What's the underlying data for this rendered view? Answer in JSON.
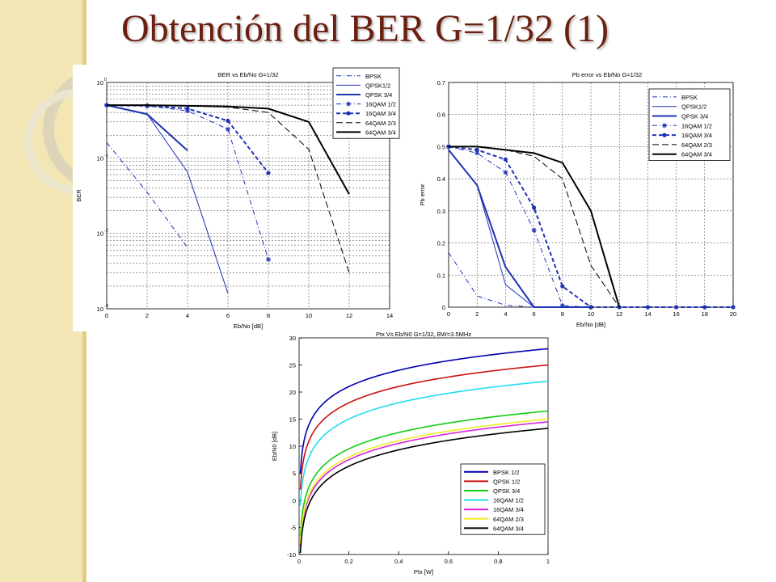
{
  "slide": {
    "title": "Obtención del BER G=1/32 (1)"
  },
  "chart_data": [
    {
      "type": "line",
      "title": "BER vs Eb/No G=1/32",
      "xlabel": "Eb/No [dB]",
      "ylabel": "BER",
      "xlim": [
        0,
        14
      ],
      "ylim": [
        0.001,
        1
      ],
      "yscale": "log",
      "xticks": [
        "0",
        "2",
        "4",
        "6",
        "8",
        "10",
        "12",
        "14"
      ],
      "yticks": [
        {
          "v": 1,
          "m": "10",
          "e": "0"
        },
        {
          "v": 0.1,
          "m": "10",
          "e": "-1"
        },
        {
          "v": 0.01,
          "m": "10",
          "e": "-2"
        },
        {
          "v": 0.001,
          "m": "10",
          "e": "-3"
        }
      ],
      "grid": true,
      "legend_position": "top-right",
      "series": [
        {
          "name": "BPSK",
          "color": "#1f33b3",
          "dash": "6,3,1,3",
          "width": 1,
          "marker": "",
          "x": [
            0,
            2,
            4
          ],
          "y": [
            0.16,
            0.035,
            0.0065
          ]
        },
        {
          "name": "QPSK1/2",
          "color": "#1f33b3",
          "dash": "",
          "width": 1,
          "marker": "",
          "x": [
            0,
            2,
            4,
            6
          ],
          "y": [
            0.5,
            0.38,
            0.065,
            0.0016
          ]
        },
        {
          "name": "QPSK 3/4",
          "color": "#1f33b3",
          "dash": "",
          "width": 2,
          "marker": "",
          "x": [
            0,
            2,
            4
          ],
          "y": [
            0.5,
            0.38,
            0.125
          ]
        },
        {
          "name": "16QAM 1/2",
          "color": "#1f33b3",
          "dash": "6,3,1,3",
          "width": 1,
          "marker": "star",
          "x": [
            0,
            2,
            4,
            6,
            8
          ],
          "y": [
            0.5,
            0.49,
            0.42,
            0.24,
            0.0045
          ]
        },
        {
          "name": "16QAM 3/4",
          "color": "#1f33b3",
          "dash": "5,3",
          "width": 2,
          "marker": "dot",
          "x": [
            0,
            2,
            4,
            6,
            8
          ],
          "y": [
            0.5,
            0.49,
            0.45,
            0.31,
            0.063
          ]
        },
        {
          "name": "64QAM 2/3",
          "color": "#000000",
          "dash": "8,4",
          "width": 1,
          "marker": "",
          "x": [
            0,
            2,
            4,
            6,
            8,
            10,
            12
          ],
          "y": [
            0.5,
            0.5,
            0.49,
            0.47,
            0.4,
            0.13,
            0.003
          ]
        },
        {
          "name": "64QAM 3/4",
          "color": "#000000",
          "dash": "",
          "width": 2,
          "marker": "",
          "x": [
            0,
            2,
            4,
            6,
            8,
            10,
            12
          ],
          "y": [
            0.5,
            0.5,
            0.49,
            0.48,
            0.45,
            0.3,
            0.033
          ]
        }
      ]
    },
    {
      "type": "line",
      "title": "Pb error vs Eb/No G=1/32",
      "xlabel": "Eb/No [dB]",
      "ylabel": "Pb error",
      "xlim": [
        0,
        20
      ],
      "ylim": [
        0,
        0.7
      ],
      "xticks": [
        "0",
        "2",
        "4",
        "6",
        "8",
        "10",
        "12",
        "14",
        "16",
        "18",
        "20"
      ],
      "yticks": [
        "0",
        "0.1",
        "0.2",
        "0.3",
        "0.4",
        "0.5",
        "0.6",
        "0.7"
      ],
      "grid": true,
      "legend_position": "top-right",
      "series": [
        {
          "name": "BPSK",
          "color": "#1f33b3",
          "dash": "6,3,1,3",
          "width": 1,
          "marker": "",
          "x": [
            0,
            2,
            4,
            6
          ],
          "y": [
            0.17,
            0.035,
            0.006,
            0
          ]
        },
        {
          "name": "QPSK1/2",
          "color": "#1f33b3",
          "dash": "",
          "width": 1,
          "marker": "",
          "x": [
            0,
            2,
            4,
            6,
            8
          ],
          "y": [
            0.49,
            0.38,
            0.07,
            0,
            0
          ]
        },
        {
          "name": "QPSK 3/4",
          "color": "#1f33b3",
          "dash": "",
          "width": 2,
          "marker": "",
          "x": [
            0,
            2,
            4,
            6,
            8,
            10
          ],
          "y": [
            0.49,
            0.38,
            0.125,
            0,
            0,
            0
          ]
        },
        {
          "name": "16QAM 1/2",
          "color": "#1f33b3",
          "dash": "6,3,1,3",
          "width": 1,
          "marker": "star",
          "x": [
            0,
            2,
            4,
            6,
            8,
            10
          ],
          "y": [
            0.5,
            0.48,
            0.42,
            0.24,
            0.005,
            0
          ]
        },
        {
          "name": "16QAM 3/4",
          "color": "#1f33b3",
          "dash": "5,3",
          "width": 2,
          "marker": "dot",
          "x": [
            0,
            2,
            4,
            6,
            8,
            10,
            12,
            14,
            16,
            18,
            20
          ],
          "y": [
            0.5,
            0.49,
            0.46,
            0.31,
            0.065,
            0,
            0,
            0,
            0,
            0,
            0
          ]
        },
        {
          "name": "64QAM 2/3",
          "color": "#000000",
          "dash": "8,4",
          "width": 1,
          "marker": "",
          "x": [
            0,
            2,
            4,
            6,
            8,
            10,
            12
          ],
          "y": [
            0.5,
            0.5,
            0.49,
            0.47,
            0.4,
            0.13,
            0
          ]
        },
        {
          "name": "64QAM 3/4",
          "color": "#000000",
          "dash": "",
          "width": 2,
          "marker": "",
          "x": [
            0,
            2,
            4,
            6,
            8,
            10,
            12
          ],
          "y": [
            0.5,
            0.5,
            0.49,
            0.48,
            0.45,
            0.3,
            0
          ]
        }
      ]
    },
    {
      "type": "line",
      "title": "Ptx Vs Eb/N0 G=1/32, BW=3.5MHz",
      "xlabel": "Ptx [W]",
      "ylabel": "Eb/N0 [dB]",
      "xlim": [
        0,
        1
      ],
      "ylim": [
        -10,
        30
      ],
      "xticks": [
        "0",
        "0.2",
        "0.4",
        "0.6",
        "0.8",
        "1"
      ],
      "yticks": [
        "-10",
        "-5",
        "0",
        "5",
        "10",
        "15",
        "20",
        "25",
        "30"
      ],
      "grid": true,
      "legend_position": "bottom-right",
      "series": [
        {
          "name": "BPSK 1/2",
          "color": "#0000b0",
          "offset": 28.0
        },
        {
          "name": "QPSK 1/2",
          "color": "#cc1111",
          "offset": 25.0
        },
        {
          "name": "QPSK 3/4",
          "color": "#11cc11",
          "offset": 16.5
        },
        {
          "name": "16QAM 1/2",
          "color": "#22ddee",
          "offset": 22.0
        },
        {
          "name": "16QAM 3/4",
          "color": "#dd22dd",
          "offset": 14.5
        },
        {
          "name": "64QAM 2/3",
          "color": "#eeee22",
          "offset": 15.0
        },
        {
          "name": "64QAM 3/4",
          "color": "#000000",
          "offset": 13.3
        }
      ],
      "note_curve": "y = offset + 10*log10(x)"
    }
  ]
}
